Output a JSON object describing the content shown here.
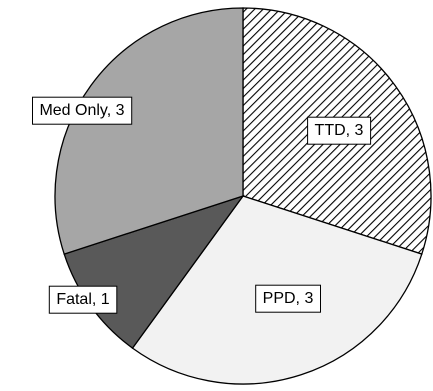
{
  "chart_data": {
    "type": "pie",
    "slices": [
      {
        "label": "TTD",
        "value": 3,
        "data_label": "TTD, 3",
        "fill": "hatch",
        "color": "#000000"
      },
      {
        "label": "PPD",
        "value": 3,
        "data_label": "PPD, 3",
        "fill": "solid",
        "color": "#f2f2f2"
      },
      {
        "label": "Fatal",
        "value": 1,
        "data_label": "Fatal, 1",
        "fill": "solid",
        "color": "#595959"
      },
      {
        "label": "Med Only",
        "value": 3,
        "data_label": "Med Only, 3",
        "fill": "solid",
        "color": "#a6a6a6"
      }
    ],
    "start_angle_deg": 0,
    "direction": "clockwise",
    "legend": "none",
    "data_labels": "inside-boxed"
  }
}
